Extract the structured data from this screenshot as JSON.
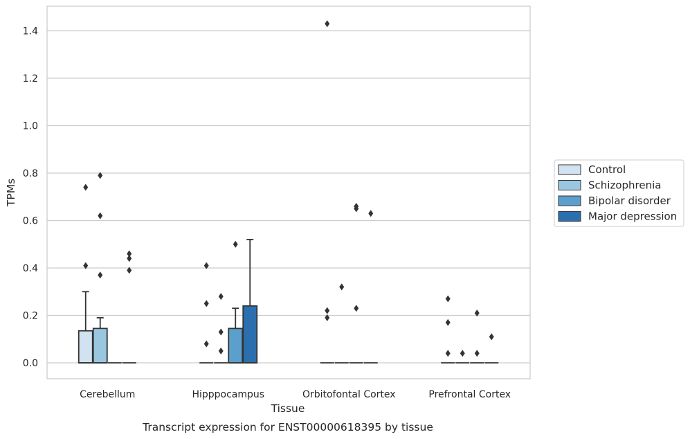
{
  "chart_data": {
    "type": "box",
    "title": "Transcript expression for ENST00000618395 by tissue",
    "xlabel": "Tissue",
    "ylabel": "TPMs",
    "ylim": [
      -0.07,
      1.5
    ],
    "yticks": [
      0.0,
      0.2,
      0.4,
      0.6,
      0.8,
      1.0,
      1.2,
      1.4
    ],
    "ytick_labels": [
      "0.0",
      "0.2",
      "0.4",
      "0.6",
      "0.8",
      "1.0",
      "1.2",
      "1.4"
    ],
    "grid": true,
    "legend_position": "right",
    "categories": [
      "Cerebellum",
      "Hipppocampus",
      "Orbitofontal Cortex",
      "Prefrontal Cortex"
    ],
    "series": [
      {
        "name": "Control",
        "color": "#d1e2f0",
        "boxes": [
          {
            "q1": 0.0,
            "median": 0.0,
            "q3": 0.135,
            "whisker_low": 0.0,
            "whisker_high": 0.3,
            "outliers": [
              0.41,
              0.74
            ]
          },
          {
            "q1": 0.0,
            "median": 0.0,
            "q3": 0.0,
            "whisker_low": 0.0,
            "whisker_high": 0.0,
            "outliers": [
              0.08,
              0.25,
              0.41
            ]
          },
          {
            "q1": 0.0,
            "median": 0.0,
            "q3": 0.0,
            "whisker_low": 0.0,
            "whisker_high": 0.0,
            "outliers": [
              0.19,
              0.22,
              1.43
            ]
          },
          {
            "q1": 0.0,
            "median": 0.0,
            "q3": 0.0,
            "whisker_low": 0.0,
            "whisker_high": 0.0,
            "outliers": [
              0.04,
              0.17,
              0.27
            ]
          }
        ]
      },
      {
        "name": "Schizophrenia",
        "color": "#9ac7e0",
        "boxes": [
          {
            "q1": 0.0,
            "median": 0.0,
            "q3": 0.145,
            "whisker_low": 0.0,
            "whisker_high": 0.19,
            "outliers": [
              0.37,
              0.62,
              0.79
            ]
          },
          {
            "q1": 0.0,
            "median": 0.0,
            "q3": 0.0,
            "whisker_low": 0.0,
            "whisker_high": 0.0,
            "outliers": [
              0.05,
              0.13,
              0.28
            ]
          },
          {
            "q1": 0.0,
            "median": 0.0,
            "q3": 0.0,
            "whisker_low": 0.0,
            "whisker_high": 0.0,
            "outliers": [
              0.32
            ]
          },
          {
            "q1": 0.0,
            "median": 0.0,
            "q3": 0.0,
            "whisker_low": 0.0,
            "whisker_high": 0.0,
            "outliers": [
              0.04
            ]
          }
        ]
      },
      {
        "name": "Bipolar disorder",
        "color": "#5ba0cc",
        "boxes": [
          {
            "q1": 0.0,
            "median": 0.0,
            "q3": 0.0,
            "whisker_low": 0.0,
            "whisker_high": 0.0,
            "outliers": []
          },
          {
            "q1": 0.0,
            "median": 0.0,
            "q3": 0.145,
            "whisker_low": 0.0,
            "whisker_high": 0.23,
            "outliers": [
              0.5
            ]
          },
          {
            "q1": 0.0,
            "median": 0.0,
            "q3": 0.0,
            "whisker_low": 0.0,
            "whisker_high": 0.0,
            "outliers": [
              0.23,
              0.65,
              0.66
            ]
          },
          {
            "q1": 0.0,
            "median": 0.0,
            "q3": 0.0,
            "whisker_low": 0.0,
            "whisker_high": 0.0,
            "outliers": [
              0.04,
              0.21
            ]
          }
        ]
      },
      {
        "name": "Major depression",
        "color": "#2c6fae",
        "boxes": [
          {
            "q1": 0.0,
            "median": 0.0,
            "q3": 0.0,
            "whisker_low": 0.0,
            "whisker_high": 0.0,
            "outliers": [
              0.39,
              0.44,
              0.46
            ]
          },
          {
            "q1": 0.0,
            "median": 0.0,
            "q3": 0.24,
            "whisker_low": 0.0,
            "whisker_high": 0.52,
            "outliers": []
          },
          {
            "q1": 0.0,
            "median": 0.0,
            "q3": 0.0,
            "whisker_low": 0.0,
            "whisker_high": 0.0,
            "outliers": [
              0.63
            ]
          },
          {
            "q1": 0.0,
            "median": 0.0,
            "q3": 0.0,
            "whisker_low": 0.0,
            "whisker_high": 0.0,
            "outliers": [
              0.11
            ]
          }
        ]
      }
    ]
  },
  "colors": {
    "grid": "#cccccc",
    "frame": "#cccccc",
    "edge": "#333333",
    "background": "#ffffff"
  }
}
